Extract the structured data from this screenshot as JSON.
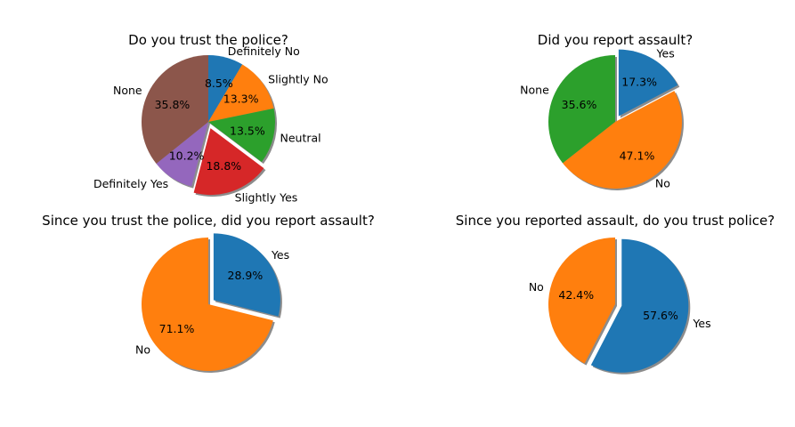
{
  "chart_data": [
    {
      "type": "pie",
      "title": "Do you trust the police?",
      "labels": [
        "Definitely No",
        "Slightly No",
        "Neutral",
        "Slightly Yes",
        "Definitely Yes",
        "None"
      ],
      "values": [
        8.5,
        13.3,
        13.5,
        18.8,
        10.2,
        35.8
      ],
      "value_labels": [
        "8.5%",
        "13.3%",
        "13.5%",
        "18.8%",
        "10.2%",
        "35.8%"
      ],
      "colors": [
        "#1f77b4",
        "#ff7f0e",
        "#2ca02c",
        "#d62728",
        "#9467bd",
        "#8c564b"
      ],
      "explode": [
        0,
        0,
        0,
        0.1,
        0,
        0
      ],
      "start_angle": 90,
      "shadow": true
    },
    {
      "type": "pie",
      "title": "Did you report assault?",
      "labels": [
        "Yes",
        "No",
        "None"
      ],
      "values": [
        17.3,
        47.1,
        35.6
      ],
      "value_labels": [
        "17.3%",
        "47.1%",
        "35.6%"
      ],
      "colors": [
        "#1f77b4",
        "#ff7f0e",
        "#2ca02c"
      ],
      "explode": [
        0.1,
        0,
        0
      ],
      "start_angle": 90,
      "shadow": true
    },
    {
      "type": "pie",
      "title": "Since you trust the police, did you report assault?",
      "labels": [
        "Yes",
        "No"
      ],
      "values": [
        28.9,
        71.1
      ],
      "value_labels": [
        "28.9%",
        "71.1%"
      ],
      "colors": [
        "#1f77b4",
        "#ff7f0e"
      ],
      "explode": [
        0.1,
        0
      ],
      "start_angle": 90,
      "shadow": true
    },
    {
      "type": "pie",
      "title": "Since you reported assault, do you trust police?",
      "labels": [
        "Yes",
        "No"
      ],
      "values": [
        57.6,
        42.4
      ],
      "value_labels": [
        "57.6%",
        "42.4%"
      ],
      "colors": [
        "#1f77b4",
        "#ff7f0e"
      ],
      "explode": [
        0.1,
        0
      ],
      "start_angle": 90,
      "shadow": true
    }
  ]
}
